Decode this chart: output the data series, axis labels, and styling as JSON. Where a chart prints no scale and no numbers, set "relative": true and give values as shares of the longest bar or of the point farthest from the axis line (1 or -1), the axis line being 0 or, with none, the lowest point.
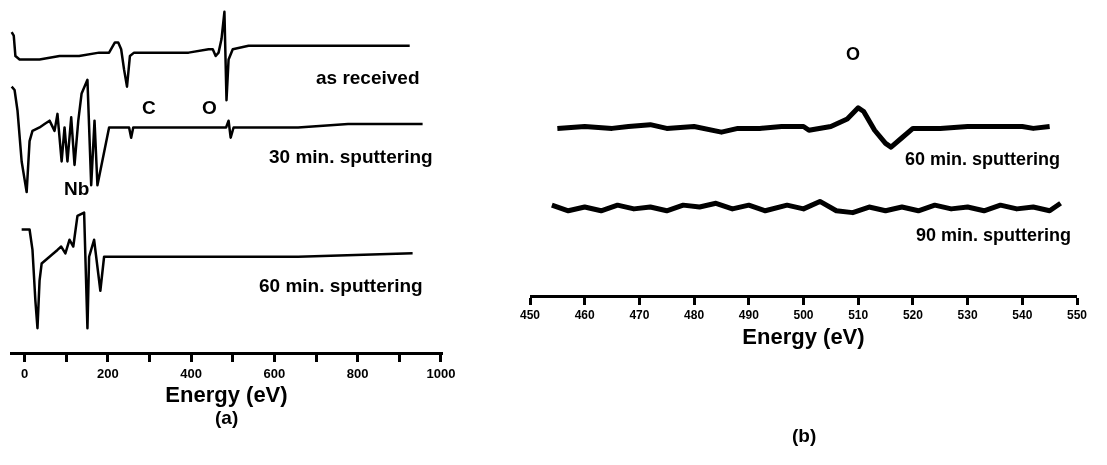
{
  "chart_data": [
    {
      "type": "line",
      "relative": true,
      "xlabel": "Energy (eV)",
      "xlim": [
        -35,
        1005
      ],
      "xticks": [
        0,
        {
          "value": 100,
          "label": null
        },
        200,
        {
          "value": 300,
          "label": null
        },
        400,
        {
          "value": 500,
          "label": null
        },
        600,
        {
          "value": 700,
          "label": null
        },
        800,
        {
          "value": 900,
          "label": null
        },
        1000
      ],
      "grid": false,
      "legend": false,
      "marker": "none",
      "line_style": "solid",
      "annotations": [
        "C",
        "O",
        "Nb",
        "(a)"
      ],
      "series": [
        {
          "name": "as received",
          "color": "#000000",
          "x": [
            -31,
            -26,
            -22,
            -12,
            36,
            84,
            131,
            179,
            203,
            217,
            225,
            232,
            239,
            246,
            253,
            263,
            323,
            394,
            442,
            452,
            459,
            466,
            473,
            480,
            485,
            490,
            500,
            538,
            657,
            777,
            848,
            925
          ],
          "values": [
            0.94,
            0.93,
            0.87,
            0.86,
            0.86,
            0.87,
            0.87,
            0.88,
            0.88,
            0.91,
            0.91,
            0.89,
            0.83,
            0.78,
            0.87,
            0.88,
            0.88,
            0.88,
            0.89,
            0.89,
            0.87,
            0.88,
            0.92,
            1,
            0.74,
            0.86,
            0.89,
            0.9,
            0.9,
            0.9,
            0.9,
            0.9
          ]
        },
        {
          "name": "30 min. sputtering",
          "color": "#000000",
          "x": [
            -31,
            -24,
            -17,
            -7,
            5,
            12,
            19,
            36,
            48,
            60,
            72,
            79,
            89,
            96,
            103,
            112,
            120,
            129,
            137,
            151,
            160,
            168,
            175,
            203,
            227,
            251,
            256,
            261,
            263,
            268,
            280,
            389,
            484,
            490,
            495,
            502,
            657,
            777,
            896,
            956
          ],
          "values": [
            0.78,
            0.77,
            0.71,
            0.56,
            0.47,
            0.62,
            0.65,
            0.66,
            0.67,
            0.68,
            0.65,
            0.7,
            0.56,
            0.66,
            0.56,
            0.69,
            0.55,
            0.68,
            0.76,
            0.8,
            0.49,
            0.68,
            0.49,
            0.66,
            0.66,
            0.66,
            0.63,
            0.66,
            0.66,
            0.66,
            0.66,
            0.66,
            0.66,
            0.68,
            0.63,
            0.66,
            0.66,
            0.67,
            0.67,
            0.67
          ]
        },
        {
          "name": "60 min. sputtering",
          "color": "#000000",
          "x": [
            -7,
            12,
            19,
            26,
            31,
            36,
            41,
            60,
            79,
            88,
            98,
            108,
            117,
            127,
            143,
            151,
            155,
            167,
            182,
            191,
            203,
            227,
            418,
            657,
            932
          ],
          "values": [
            0.36,
            0.36,
            0.3,
            0.15,
            0.07,
            0.21,
            0.26,
            0.28,
            0.3,
            0.31,
            0.29,
            0.33,
            0.31,
            0.4,
            0.41,
            0.07,
            0.28,
            0.33,
            0.18,
            0.28,
            0.28,
            0.28,
            0.28,
            0.28,
            0.29
          ]
        }
      ]
    },
    {
      "type": "line",
      "relative": true,
      "xlabel": "Energy (eV)",
      "xlim": [
        450,
        550
      ],
      "xticks": [
        450,
        460,
        470,
        480,
        490,
        500,
        510,
        520,
        530,
        540,
        550
      ],
      "grid": false,
      "legend": false,
      "marker": "none",
      "line_style": "solid",
      "annotations": [
        "O",
        "(b)"
      ],
      "series": [
        {
          "name": "60 min. sputtering",
          "color": "#000000",
          "x": [
            455,
            460,
            465,
            468,
            472,
            475,
            480,
            485,
            488,
            492,
            496,
            500,
            501,
            505,
            508,
            510,
            511,
            513,
            515,
            516,
            518,
            520,
            525,
            530,
            535,
            540,
            542,
            545
          ],
          "values": [
            0.89,
            0.9,
            0.89,
            0.9,
            0.91,
            0.89,
            0.9,
            0.87,
            0.89,
            0.89,
            0.9,
            0.9,
            0.88,
            0.9,
            0.94,
            1,
            0.98,
            0.88,
            0.81,
            0.79,
            0.84,
            0.89,
            0.89,
            0.9,
            0.9,
            0.9,
            0.89,
            0.9
          ]
        },
        {
          "name": "90 min. sputtering",
          "color": "#000000",
          "x": [
            454,
            457,
            460,
            463,
            466,
            469,
            472,
            475,
            478,
            481,
            484,
            487,
            490,
            493,
            497,
            500,
            503,
            506,
            509,
            512,
            515,
            518,
            521,
            524,
            527,
            530,
            533,
            536,
            539,
            542,
            545,
            547
          ],
          "values": [
            0.48,
            0.45,
            0.47,
            0.45,
            0.48,
            0.46,
            0.47,
            0.45,
            0.48,
            0.47,
            0.49,
            0.46,
            0.48,
            0.45,
            0.48,
            0.46,
            0.5,
            0.45,
            0.44,
            0.47,
            0.45,
            0.47,
            0.45,
            0.48,
            0.46,
            0.47,
            0.45,
            0.48,
            0.46,
            0.47,
            0.45,
            0.49
          ]
        }
      ]
    }
  ]
}
